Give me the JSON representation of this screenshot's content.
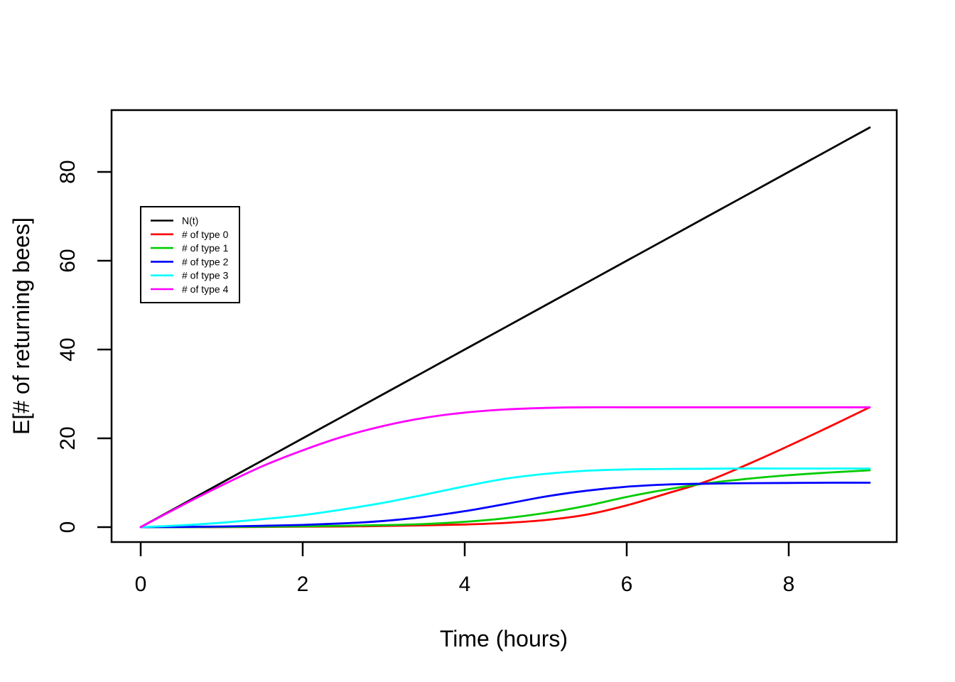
{
  "figure": {
    "background": "#FFFFFF",
    "foreground": "#000000"
  },
  "chart_data": {
    "type": "line",
    "title": "",
    "xlabel": "Time (hours)",
    "ylabel": "E[# of returning bees]",
    "x_ticks": [
      0,
      2,
      4,
      6,
      8
    ],
    "y_ticks": [
      0,
      20,
      40,
      60,
      80
    ],
    "xlim": [
      -0.36,
      9.33
    ],
    "ylim": [
      -3.4,
      93.9
    ],
    "grid": false,
    "legend_position": "upper-left",
    "x": [
      0,
      0.5,
      1,
      1.5,
      2,
      2.5,
      3,
      3.5,
      4,
      4.5,
      5,
      5.5,
      6,
      6.5,
      7,
      7.5,
      8,
      8.5,
      9
    ],
    "series": [
      {
        "name": "N(t)",
        "color": "#000000",
        "values": [
          0,
          5,
          10,
          15,
          20,
          25,
          30,
          35,
          40,
          45,
          50,
          55,
          60,
          65,
          70,
          75,
          80,
          85,
          90
        ]
      },
      {
        "name": "# of type 0",
        "color": "#FF0000",
        "values": [
          0,
          0,
          0,
          0.05,
          0.1,
          0.15,
          0.25,
          0.4,
          0.6,
          0.95,
          1.6,
          2.8,
          4.9,
          7.6,
          10.4,
          14.2,
          18.3,
          22.6,
          27
        ]
      },
      {
        "name": "# of type 1",
        "color": "#00CC00",
        "values": [
          0,
          0,
          0.05,
          0.1,
          0.2,
          0.3,
          0.45,
          0.7,
          1.2,
          2.0,
          3.2,
          4.8,
          6.8,
          8.5,
          9.9,
          10.9,
          11.7,
          12.3,
          12.8
        ]
      },
      {
        "name": "# of type 2",
        "color": "#0000FF",
        "values": [
          0,
          0.05,
          0.15,
          0.3,
          0.5,
          0.85,
          1.4,
          2.3,
          3.6,
          5.2,
          6.9,
          8.2,
          9.1,
          9.6,
          9.8,
          9.9,
          9.95,
          10,
          10
        ]
      },
      {
        "name": "# of type 3",
        "color": "#00FFFF",
        "values": [
          0,
          0.4,
          1.0,
          1.8,
          2.7,
          4.0,
          5.5,
          7.3,
          9.2,
          10.9,
          12.0,
          12.7,
          13.0,
          13.1,
          13.15,
          13.2,
          13.2,
          13.2,
          13.2
        ]
      },
      {
        "name": "# of type 4",
        "color": "#FF00FF",
        "values": [
          0,
          4.8,
          9.4,
          13.7,
          17.3,
          20.4,
          22.8,
          24.6,
          25.8,
          26.5,
          26.85,
          27,
          27,
          27,
          27,
          27,
          27,
          27,
          27
        ]
      }
    ]
  }
}
